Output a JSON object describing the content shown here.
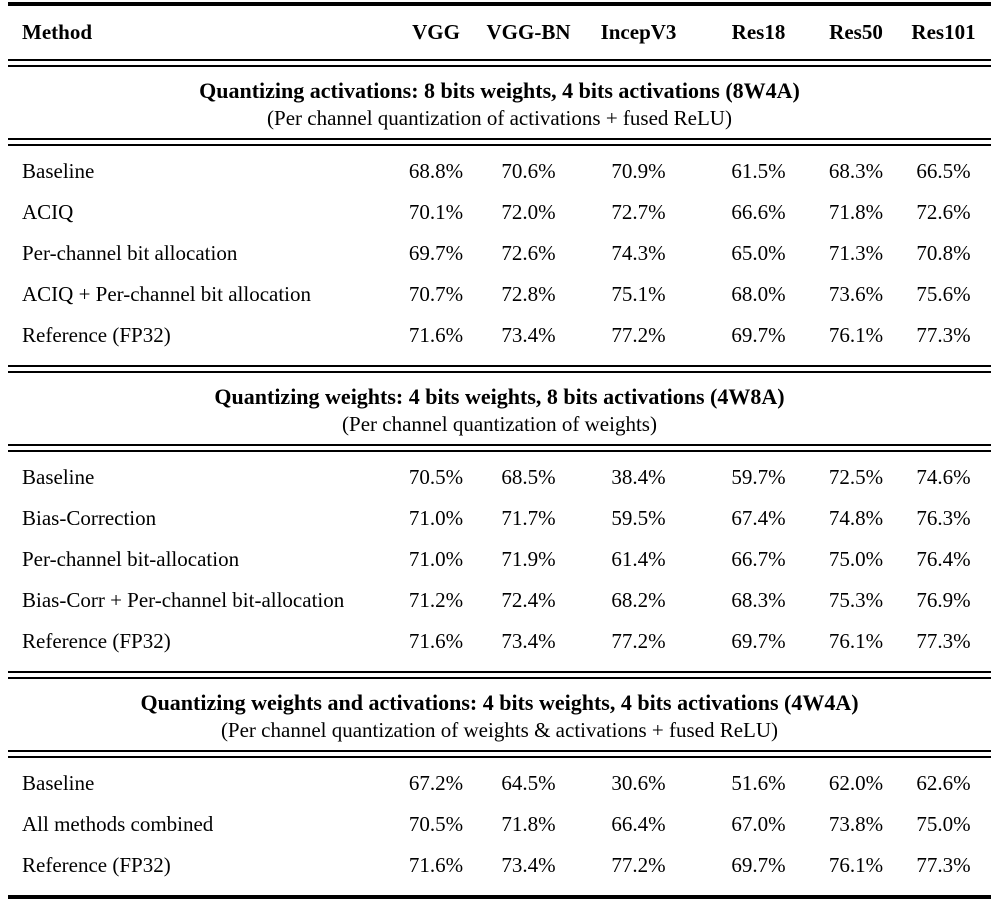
{
  "table": {
    "columns": [
      "Method",
      "VGG",
      "VGG-BN",
      "IncepV3",
      "Res18",
      "Res50",
      "Res101"
    ],
    "sections": [
      {
        "title": "Quantizing activations: 8 bits weights, 4 bits activations (8W4A)",
        "subtitle": "(Per channel quantization of activations + fused ReLU)",
        "rows": [
          {
            "method": "Baseline",
            "values": [
              "68.8%",
              "70.6%",
              "70.9%",
              "61.5%",
              "68.3%",
              "66.5%"
            ]
          },
          {
            "method": "ACIQ",
            "values": [
              "70.1%",
              "72.0%",
              "72.7%",
              "66.6%",
              "71.8%",
              "72.6%"
            ]
          },
          {
            "method": "Per-channel bit allocation",
            "values": [
              "69.7%",
              "72.6%",
              "74.3%",
              "65.0%",
              "71.3%",
              "70.8%"
            ]
          },
          {
            "method": "ACIQ + Per-channel bit allocation",
            "values": [
              "70.7%",
              "72.8%",
              "75.1%",
              "68.0%",
              "73.6%",
              "75.6%"
            ]
          },
          {
            "method": "Reference (FP32)",
            "values": [
              "71.6%",
              "73.4%",
              "77.2%",
              "69.7%",
              "76.1%",
              "77.3%"
            ]
          }
        ]
      },
      {
        "title": "Quantizing weights: 4 bits weights, 8 bits activations (4W8A)",
        "subtitle": "(Per channel quantization of weights)",
        "rows": [
          {
            "method": "Baseline",
            "values": [
              "70.5%",
              "68.5%",
              "38.4%",
              "59.7%",
              "72.5%",
              "74.6%"
            ]
          },
          {
            "method": "Bias-Correction",
            "values": [
              "71.0%",
              "71.7%",
              "59.5%",
              "67.4%",
              "74.8%",
              "76.3%"
            ]
          },
          {
            "method": "Per-channel bit-allocation",
            "values": [
              "71.0%",
              "71.9%",
              "61.4%",
              "66.7%",
              "75.0%",
              "76.4%"
            ]
          },
          {
            "method": "Bias-Corr + Per-channel bit-allocation",
            "values": [
              "71.2%",
              "72.4%",
              "68.2%",
              "68.3%",
              "75.3%",
              "76.9%"
            ]
          },
          {
            "method": "Reference (FP32)",
            "values": [
              "71.6%",
              "73.4%",
              "77.2%",
              "69.7%",
              "76.1%",
              "77.3%"
            ]
          }
        ]
      },
      {
        "title": "Quantizing weights and activations: 4 bits weights, 4 bits activations (4W4A)",
        "subtitle": "(Per channel quantization of weights & activations + fused ReLU)",
        "rows": [
          {
            "method": "Baseline",
            "values": [
              "67.2%",
              "64.5%",
              "30.6%",
              "51.6%",
              "62.0%",
              "62.6%"
            ]
          },
          {
            "method": "All methods combined",
            "values": [
              "70.5%",
              "71.8%",
              "66.4%",
              "67.0%",
              "73.8%",
              "75.0%"
            ]
          },
          {
            "method": "Reference (FP32)",
            "values": [
              "71.6%",
              "73.4%",
              "77.2%",
              "69.7%",
              "76.1%",
              "77.3%"
            ]
          }
        ]
      }
    ]
  },
  "colors": {
    "text": "#000000",
    "background": "#ffffff",
    "rule": "#000000"
  }
}
